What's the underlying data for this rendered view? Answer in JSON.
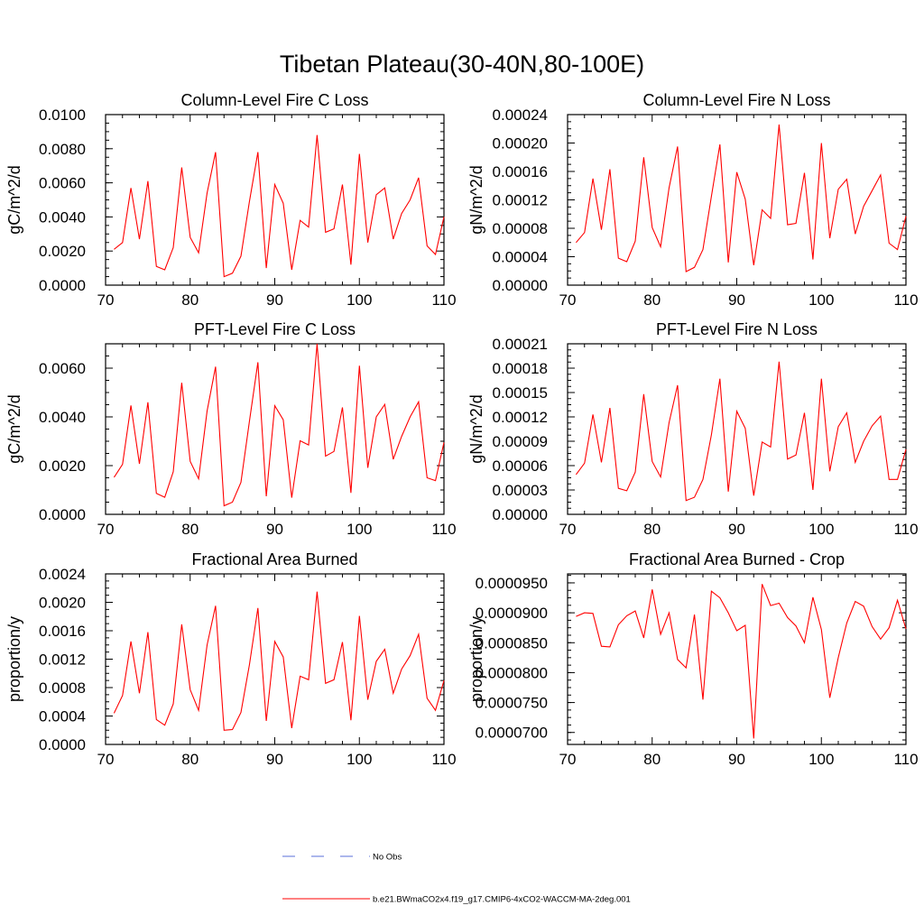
{
  "figure": {
    "title": "Tibetan Plateau(30-40N,80-100E)"
  },
  "legend": [
    {
      "label": "No Obs",
      "color": "#5a6fd8",
      "dash": "dashed"
    },
    {
      "label": "b.e21.BWmaCO2x4.f19_g17.CMIP6-4xCO2-WACCM-MA-2deg.001",
      "color": "#ff0000",
      "dash": "solid"
    }
  ],
  "chart_data": [
    {
      "type": "line",
      "title": "Column-Level Fire C Loss",
      "ylabel": "gC/m^2/d",
      "xlim": [
        70,
        110
      ],
      "ylim": [
        0,
        0.01
      ],
      "x_ticks": [
        "70",
        "80",
        "90",
        "100",
        "110"
      ],
      "y_ticks": [
        "0.0000",
        "0.0020",
        "0.0040",
        "0.0060",
        "0.0080",
        "0.0100"
      ],
      "series": [
        {
          "color": "#ff0000",
          "x": [
            71,
            72,
            73,
            74,
            75,
            76,
            77,
            78,
            79,
            80,
            81,
            82,
            83,
            84,
            85,
            86,
            87,
            88,
            89,
            90,
            91,
            92,
            93,
            94,
            95,
            96,
            97,
            98,
            99,
            100,
            101,
            102,
            103,
            104,
            105,
            106,
            107,
            108,
            109,
            110
          ],
          "values": [
            0.0021,
            0.0025,
            0.0057,
            0.0027,
            0.0061,
            0.0011,
            0.0009,
            0.0022,
            0.0069,
            0.0028,
            0.0019,
            0.0054,
            0.0078,
            0.0005,
            0.0007,
            0.0017,
            0.0049,
            0.0078,
            0.001,
            0.0059,
            0.0048,
            0.0009,
            0.0038,
            0.0034,
            0.0088,
            0.0031,
            0.0033,
            0.0059,
            0.0012,
            0.0077,
            0.0025,
            0.0053,
            0.0057,
            0.0027,
            0.0042,
            0.005,
            0.0063,
            0.0023,
            0.0018,
            0.004
          ]
        }
      ]
    },
    {
      "type": "line",
      "title": "Column-Level Fire N Loss",
      "ylabel": "gN/m^2/d",
      "xlim": [
        70,
        110
      ],
      "ylim": [
        0,
        0.00024
      ],
      "x_ticks": [
        "70",
        "80",
        "90",
        "100",
        "110"
      ],
      "y_ticks": [
        "0.00000",
        "0.00004",
        "0.00008",
        "0.00012",
        "0.00016",
        "0.00020",
        "0.00024"
      ],
      "series": [
        {
          "color": "#ff0000",
          "x": [
            71,
            72,
            73,
            74,
            75,
            76,
            77,
            78,
            79,
            80,
            81,
            82,
            83,
            84,
            85,
            86,
            87,
            88,
            89,
            90,
            91,
            92,
            93,
            94,
            95,
            96,
            97,
            98,
            99,
            100,
            101,
            102,
            103,
            104,
            105,
            106,
            107,
            108,
            109,
            110
          ],
          "values": [
            6e-05,
            7.4e-05,
            0.00015,
            7.8e-05,
            0.000163,
            3.8e-05,
            3.3e-05,
            6.2e-05,
            0.00018,
            8.1e-05,
            5.4e-05,
            0.000137,
            0.000195,
            1.9e-05,
            2.5e-05,
            5e-05,
            0.000125,
            0.000198,
            3.2e-05,
            0.000159,
            0.000121,
            2.8e-05,
            0.000106,
            9.4e-05,
            0.000226,
            8.5e-05,
            8.7e-05,
            0.000158,
            3.6e-05,
            0.0002,
            6.6e-05,
            0.000135,
            0.000149,
            7.2e-05,
            0.000111,
            0.000133,
            0.000155,
            5.9e-05,
            5e-05,
            9.7e-05
          ]
        }
      ]
    },
    {
      "type": "line",
      "title": "PFT-Level Fire C Loss",
      "ylabel": "gC/m^2/d",
      "xlim": [
        70,
        110
      ],
      "ylim": [
        0,
        0.007
      ],
      "x_ticks": [
        "70",
        "80",
        "90",
        "100",
        "110"
      ],
      "y_ticks": [
        "0.0000",
        "0.0020",
        "0.0040",
        "0.0060"
      ],
      "series": [
        {
          "color": "#ff0000",
          "x": [
            71,
            72,
            73,
            74,
            75,
            76,
            77,
            78,
            79,
            80,
            81,
            82,
            83,
            84,
            85,
            86,
            87,
            88,
            89,
            90,
            91,
            92,
            93,
            94,
            95,
            96,
            97,
            98,
            99,
            100,
            101,
            102,
            103,
            104,
            105,
            106,
            107,
            108,
            109,
            110
          ],
          "values": [
            0.00152,
            0.00205,
            0.00447,
            0.00207,
            0.0046,
            0.00086,
            0.0007,
            0.00175,
            0.0054,
            0.00217,
            0.00146,
            0.00424,
            0.00606,
            0.00035,
            0.0005,
            0.00131,
            0.00381,
            0.00624,
            0.00074,
            0.00446,
            0.00388,
            0.00068,
            0.00302,
            0.00285,
            0.007,
            0.00239,
            0.00258,
            0.00439,
            0.00088,
            0.0061,
            0.00191,
            0.004,
            0.00451,
            0.00226,
            0.0032,
            0.004,
            0.00462,
            0.0015,
            0.00138,
            0.00295
          ]
        }
      ]
    },
    {
      "type": "line",
      "title": "PFT-Level Fire N Loss",
      "ylabel": "gN/m^2/d",
      "xlim": [
        70,
        110
      ],
      "ylim": [
        0,
        0.00021
      ],
      "x_ticks": [
        "70",
        "80",
        "90",
        "100",
        "110"
      ],
      "y_ticks": [
        "0.00000",
        "0.00003",
        "0.00006",
        "0.00009",
        "0.00012",
        "0.00015",
        "0.00018",
        "0.00021"
      ],
      "series": [
        {
          "color": "#ff0000",
          "x": [
            71,
            72,
            73,
            74,
            75,
            76,
            77,
            78,
            79,
            80,
            81,
            82,
            83,
            84,
            85,
            86,
            87,
            88,
            89,
            90,
            91,
            92,
            93,
            94,
            95,
            96,
            97,
            98,
            99,
            100,
            101,
            102,
            103,
            104,
            105,
            106,
            107,
            108,
            109,
            110
          ],
          "values": [
            4.9e-05,
            6.3e-05,
            0.000123,
            6.4e-05,
            0.000131,
            3.2e-05,
            2.9e-05,
            5.2e-05,
            0.000148,
            6.5e-05,
            4.6e-05,
            0.000113,
            0.000159,
            1.7e-05,
            2.1e-05,
            4.3e-05,
            9.8e-05,
            0.000167,
            2.8e-05,
            0.000127,
            0.000106,
            2.3e-05,
            8.9e-05,
            8.3e-05,
            0.000188,
            6.8e-05,
            7.3e-05,
            0.000125,
            3e-05,
            0.000167,
            5.3e-05,
            0.000108,
            0.000125,
            6.4e-05,
            9e-05,
            0.000109,
            0.000121,
            4.3e-05,
            4.3e-05,
            8e-05
          ]
        }
      ]
    },
    {
      "type": "line",
      "title": "Fractional Area Burned",
      "ylabel": "proportion/y",
      "xlim": [
        70,
        110
      ],
      "ylim": [
        0,
        0.0024
      ],
      "x_ticks": [
        "70",
        "80",
        "90",
        "100",
        "110"
      ],
      "y_ticks": [
        "0.0000",
        "0.0004",
        "0.0008",
        "0.0012",
        "0.0016",
        "0.0020",
        "0.0024"
      ],
      "series": [
        {
          "color": "#ff0000",
          "x": [
            71,
            72,
            73,
            74,
            75,
            76,
            77,
            78,
            79,
            80,
            81,
            82,
            83,
            84,
            85,
            86,
            87,
            88,
            89,
            90,
            91,
            92,
            93,
            94,
            95,
            96,
            97,
            98,
            99,
            100,
            101,
            102,
            103,
            104,
            105,
            106,
            107,
            108,
            109,
            110
          ],
          "values": [
            0.00044,
            0.00069,
            0.00145,
            0.00072,
            0.00158,
            0.00035,
            0.00027,
            0.00057,
            0.00169,
            0.00077,
            0.00048,
            0.0014,
            0.00195,
            0.0002,
            0.00021,
            0.00045,
            0.00112,
            0.00192,
            0.00033,
            0.00145,
            0.00123,
            0.00023,
            0.00096,
            0.00091,
            0.00215,
            0.00086,
            0.00091,
            0.00144,
            0.00034,
            0.00181,
            0.00063,
            0.00117,
            0.00134,
            0.00072,
            0.00106,
            0.00125,
            0.00155,
            0.00065,
            0.00048,
            0.0009
          ]
        }
      ]
    },
    {
      "type": "line",
      "title": "Fractional Area Burned - Crop",
      "ylabel": "proportion/y",
      "xlim": [
        70,
        110
      ],
      "ylim": [
        6.8e-05,
        9.65e-05
      ],
      "x_ticks": [
        "70",
        "80",
        "90",
        "100",
        "110"
      ],
      "y_ticks": [
        "0.0000700",
        "0.0000750",
        "0.0000800",
        "0.0000850",
        "0.0000900",
        "0.0000950"
      ],
      "series": [
        {
          "color": "#ff0000",
          "x": [
            71,
            72,
            73,
            74,
            75,
            76,
            77,
            78,
            79,
            80,
            81,
            82,
            83,
            84,
            85,
            86,
            87,
            88,
            89,
            90,
            91,
            92,
            93,
            94,
            95,
            96,
            97,
            98,
            99,
            100,
            101,
            102,
            103,
            104,
            105,
            106,
            107,
            108,
            109,
            110
          ],
          "values": [
            8.94e-05,
            9e-05,
            8.99e-05,
            8.44e-05,
            8.43e-05,
            8.8e-05,
            8.95e-05,
            9.03e-05,
            8.58e-05,
            9.39e-05,
            8.64e-05,
            9e-05,
            8.22e-05,
            8.08e-05,
            8.97e-05,
            7.55e-05,
            9.36e-05,
            9.25e-05,
            9e-05,
            8.7e-05,
            8.79e-05,
            6.9e-05,
            9.48e-05,
            9.12e-05,
            9.16e-05,
            8.92e-05,
            8.78e-05,
            8.5e-05,
            9.26e-05,
            8.72e-05,
            7.58e-05,
            8.25e-05,
            8.83e-05,
            9.19e-05,
            9.11e-05,
            8.77e-05,
            8.56e-05,
            8.75e-05,
            9.21e-05,
            8.73e-05
          ]
        }
      ]
    }
  ]
}
